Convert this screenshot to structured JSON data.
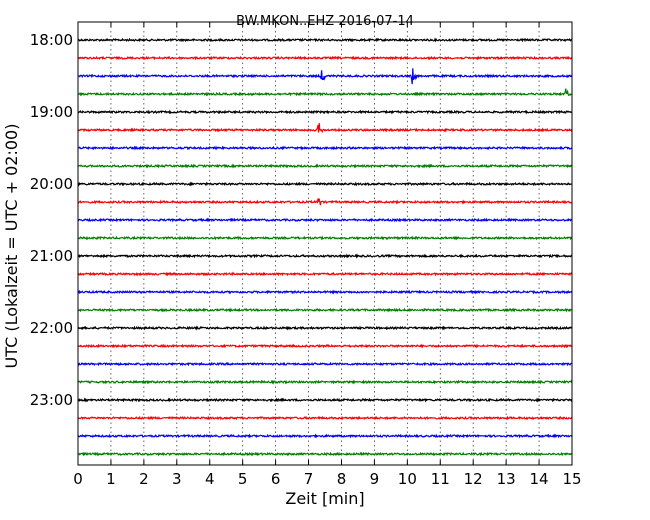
{
  "chart_data": {
    "type": "line",
    "title": "BW.MKON..EHZ 2016-07-14",
    "xlabel": "Zeit  [min]",
    "ylabel": "UTC (Lokalzeit = UTC + 02:00)",
    "xlim": [
      0,
      15
    ],
    "x_ticks": [
      "0",
      "1",
      "2",
      "3",
      "4",
      "5",
      "6",
      "7",
      "8",
      "9",
      "10",
      "11",
      "12",
      "13",
      "14",
      "15"
    ],
    "y_tick_labels": [
      "18:00",
      "19:00",
      "20:00",
      "21:00",
      "22:00",
      "23:00"
    ],
    "grid": true,
    "colors": {
      "black": "#000000",
      "red": "#ff0000",
      "blue": "#0000ff",
      "green": "#008000"
    },
    "traces": [
      {
        "start": "18:00",
        "color": "black",
        "events": []
      },
      {
        "start": "18:15",
        "color": "red",
        "events": []
      },
      {
        "start": "18:30",
        "color": "blue",
        "events": [
          {
            "minute": 7.4,
            "amp": 9
          },
          {
            "minute": 10.15,
            "amp": 10
          }
        ]
      },
      {
        "start": "18:45",
        "color": "green",
        "events": [
          {
            "minute": 14.8,
            "amp": 7
          }
        ]
      },
      {
        "start": "19:00",
        "color": "black",
        "events": []
      },
      {
        "start": "19:15",
        "color": "red",
        "events": [
          {
            "minute": 7.3,
            "amp": 10
          }
        ]
      },
      {
        "start": "19:30",
        "color": "blue",
        "events": []
      },
      {
        "start": "19:45",
        "color": "green",
        "events": []
      },
      {
        "start": "20:00",
        "color": "black",
        "events": []
      },
      {
        "start": "20:15",
        "color": "red",
        "events": [
          {
            "minute": 7.3,
            "amp": 8
          }
        ]
      },
      {
        "start": "20:30",
        "color": "blue",
        "events": []
      },
      {
        "start": "20:45",
        "color": "green",
        "events": []
      },
      {
        "start": "21:00",
        "color": "black",
        "events": []
      },
      {
        "start": "21:15",
        "color": "red",
        "events": []
      },
      {
        "start": "21:30",
        "color": "blue",
        "events": []
      },
      {
        "start": "21:45",
        "color": "green",
        "events": []
      },
      {
        "start": "22:00",
        "color": "black",
        "events": []
      },
      {
        "start": "22:15",
        "color": "red",
        "events": []
      },
      {
        "start": "22:30",
        "color": "blue",
        "events": []
      },
      {
        "start": "22:45",
        "color": "green",
        "events": []
      },
      {
        "start": "23:00",
        "color": "black",
        "events": []
      },
      {
        "start": "23:15",
        "color": "red",
        "events": []
      },
      {
        "start": "23:30",
        "color": "blue",
        "events": []
      },
      {
        "start": "23:45",
        "color": "green",
        "events": []
      }
    ]
  }
}
